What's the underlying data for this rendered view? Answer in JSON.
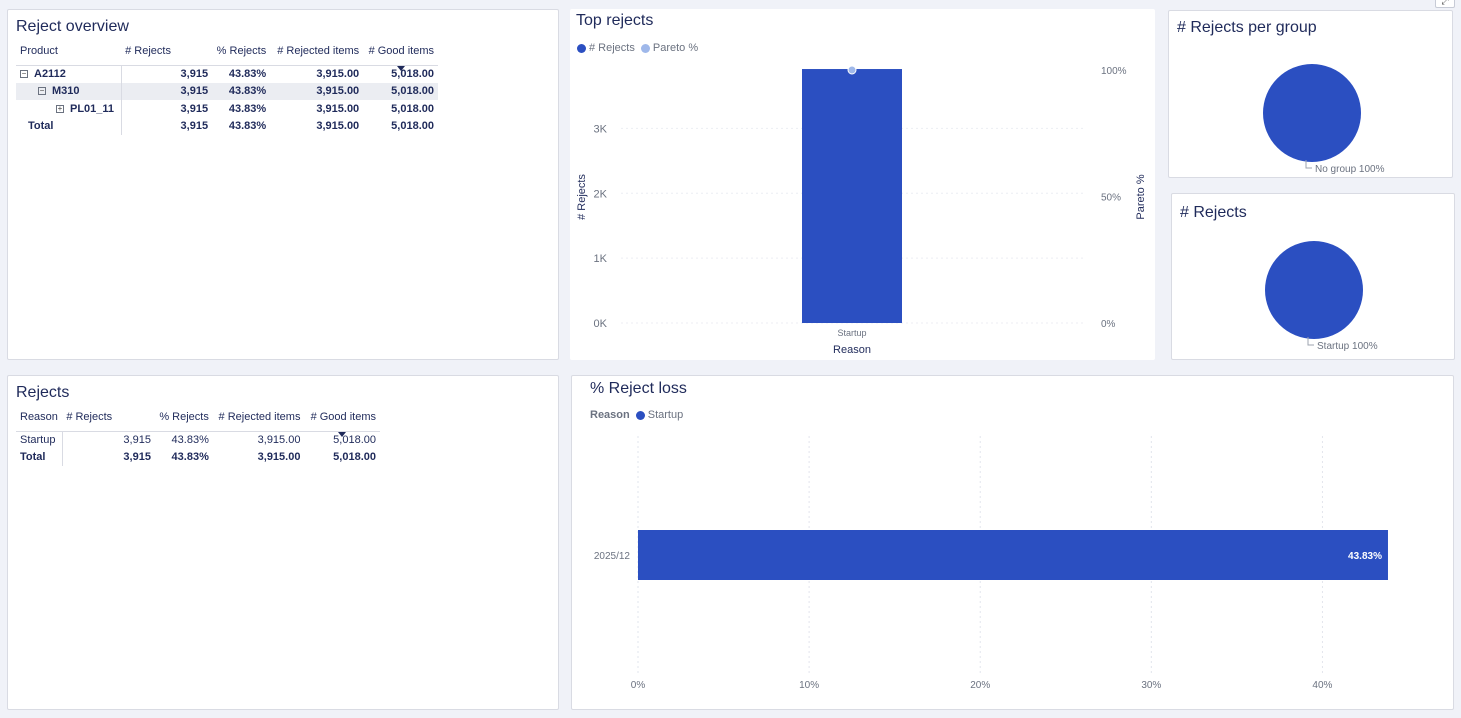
{
  "reject_overview": {
    "title": "Reject overview",
    "columns": [
      "Product",
      "# Rejects",
      "% Rejects",
      "# Rejected items",
      "# Good items"
    ],
    "rows": [
      {
        "label": "A2112",
        "expander": "⊟",
        "values": [
          "3,915",
          "43.83%",
          "3,915.00",
          "5,018.00"
        ]
      },
      {
        "label": "M310",
        "expander": "⊟",
        "values": [
          "3,915",
          "43.83%",
          "3,915.00",
          "5,018.00"
        ]
      },
      {
        "label": "PL01_11",
        "expander": "⊞",
        "values": [
          "3,915",
          "43.83%",
          "3,915.00",
          "5,018.00"
        ]
      },
      {
        "label": "Total",
        "expander": "",
        "values": [
          "3,915",
          "43.83%",
          "3,915.00",
          "5,018.00"
        ]
      }
    ]
  },
  "rejects_table": {
    "title": "Rejects",
    "columns": [
      "Reason",
      "# Rejects",
      "% Rejects",
      "# Rejected items",
      "# Good items"
    ],
    "rows": [
      {
        "label": "Startup",
        "values": [
          "3,915",
          "43.83%",
          "3,915.00",
          "5,018.00"
        ]
      },
      {
        "label": "Total",
        "values": [
          "3,915",
          "43.83%",
          "3,915.00",
          "5,018.00"
        ]
      }
    ]
  },
  "top_rejects": {
    "title": "Top rejects",
    "legend": [
      "# Rejects",
      "Pareto %"
    ],
    "colors": {
      "bar": "#2b4fc1",
      "pareto": "#9fb8ea"
    }
  },
  "rejects_per_group": {
    "title": "# Rejects per group",
    "slice_label": "No group 100%",
    "color": "#2b4fc1"
  },
  "rejects_pie": {
    "title": "# Rejects",
    "slice_label": "Startup 100%",
    "color": "#2b4fc1"
  },
  "reject_loss": {
    "title": "% Reject loss",
    "legend_title": "Reason",
    "legend": [
      "Startup"
    ],
    "color": "#2b4fc1"
  },
  "chart_data": [
    {
      "type": "bar",
      "title": "Top rejects",
      "categories": [
        "Startup"
      ],
      "series": [
        {
          "name": "# Rejects",
          "values": [
            3915
          ]
        },
        {
          "name": "Pareto %",
          "values": [
            100
          ]
        }
      ],
      "xlabel": "Reason",
      "ylabel": "# Rejects",
      "y2label": "Pareto %",
      "ylim": [
        0,
        3900
      ],
      "yticks": [
        "0K",
        "1K",
        "2K",
        "3K"
      ],
      "ytick_values": [
        0,
        1000,
        2000,
        3000
      ],
      "y2lim": [
        0,
        100
      ],
      "y2ticks": [
        "0%",
        "50%",
        "100%"
      ],
      "y2tick_values": [
        0,
        50,
        100
      ],
      "legend": "top-left",
      "grid": true
    },
    {
      "type": "pie",
      "title": "# Rejects per group",
      "categories": [
        "No group"
      ],
      "values": [
        100
      ]
    },
    {
      "type": "pie",
      "title": "# Rejects",
      "categories": [
        "Startup"
      ],
      "values": [
        100
      ]
    },
    {
      "type": "bar",
      "orientation": "horizontal",
      "title": "% Reject loss",
      "categories": [
        "2025/12"
      ],
      "series": [
        {
          "name": "Startup",
          "values": [
            43.83
          ]
        }
      ],
      "data_labels": [
        "43.83%"
      ],
      "xlim": [
        0,
        45
      ],
      "xticks": [
        "0%",
        "10%",
        "20%",
        "30%",
        "40%"
      ],
      "xtick_values": [
        0,
        10,
        20,
        30,
        40
      ],
      "legend": "top-left",
      "grid": true
    }
  ]
}
